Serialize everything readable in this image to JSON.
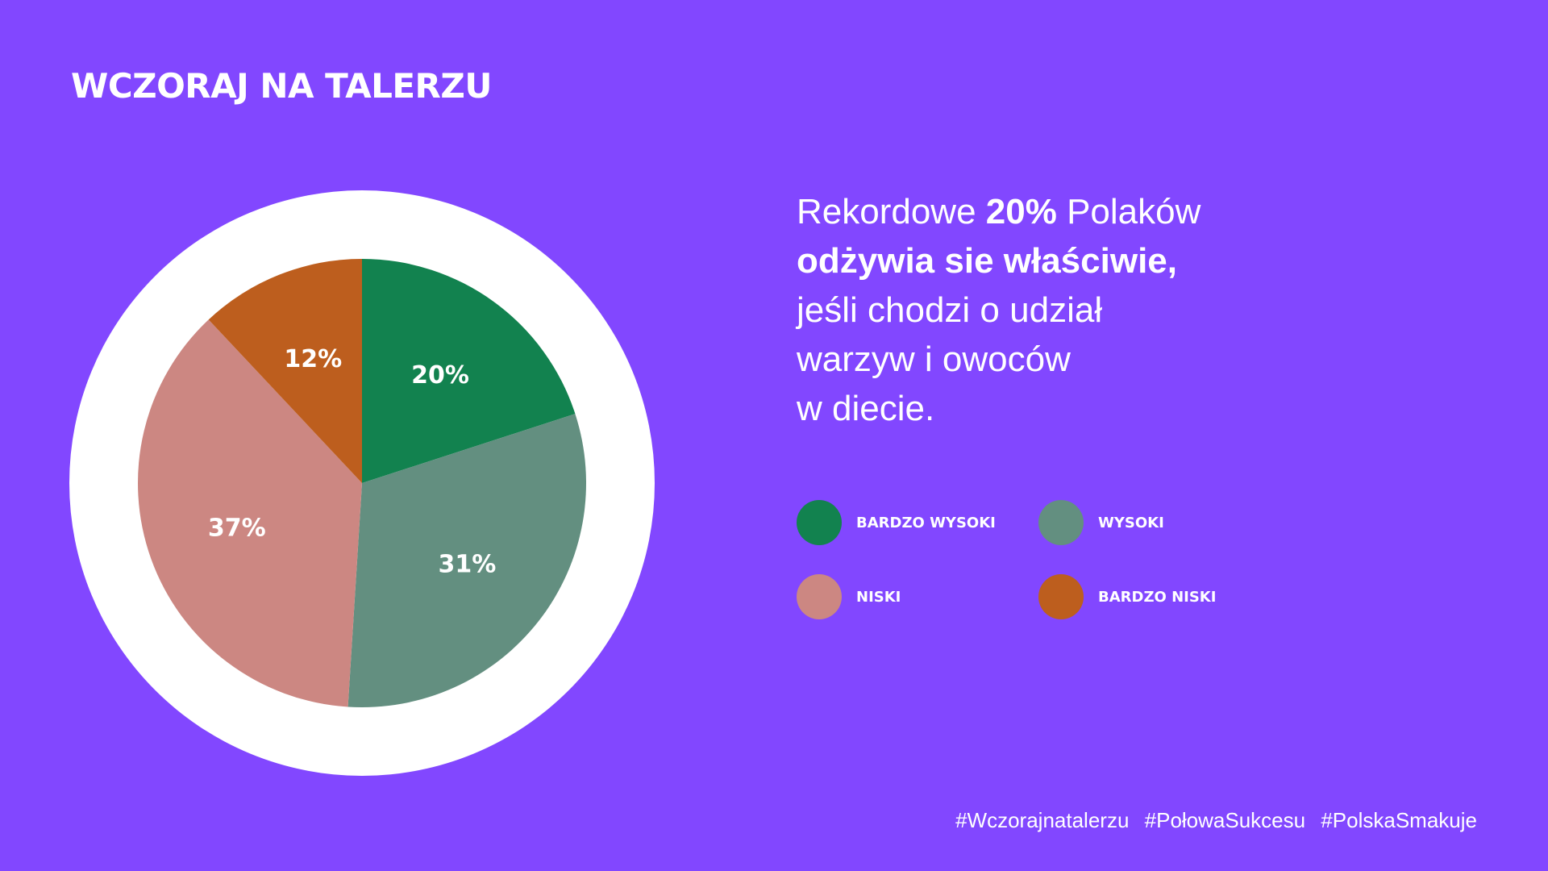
{
  "header": {
    "title": "WCZORAJ NA TALERZU"
  },
  "headline": {
    "lines": [
      {
        "pre": "Rekordowe ",
        "bold": "20%",
        "post": " Polaków"
      },
      {
        "pre": "",
        "bold": "odżywia sie właściwie,",
        "post": ""
      },
      {
        "pre": "jeśli chodzi o udział",
        "bold": "",
        "post": ""
      },
      {
        "pre": "warzyw i owoców",
        "bold": "",
        "post": ""
      },
      {
        "pre": "w diecie.",
        "bold": "",
        "post": ""
      }
    ]
  },
  "chart_data": {
    "type": "pie",
    "title": "",
    "categories": [
      "BARDZO WYSOKI",
      "WYSOKI",
      "NISKI",
      "BARDZO NISKI"
    ],
    "values": [
      20,
      31,
      37,
      12
    ],
    "labels": [
      "20%",
      "31%",
      "37%",
      "12%"
    ],
    "colors": [
      "#12824F",
      "#638F80",
      "#CC8782",
      "#BD5E1E"
    ],
    "start_angle_deg": 0,
    "direction": "clockwise",
    "legend_position": "right"
  },
  "legend": {
    "items": [
      {
        "label": "BARDZO WYSOKI",
        "color": "#12824F"
      },
      {
        "label": "WYSOKI",
        "color": "#638F80"
      },
      {
        "label": "NISKI",
        "color": "#CC8782"
      },
      {
        "label": "BARDZO NISKI",
        "color": "#BD5E1E"
      }
    ]
  },
  "footer": {
    "hashtags": [
      "#Wczorajnatalerzu",
      "#PołowaSukcesu",
      "#PolskaSmakuje"
    ]
  }
}
